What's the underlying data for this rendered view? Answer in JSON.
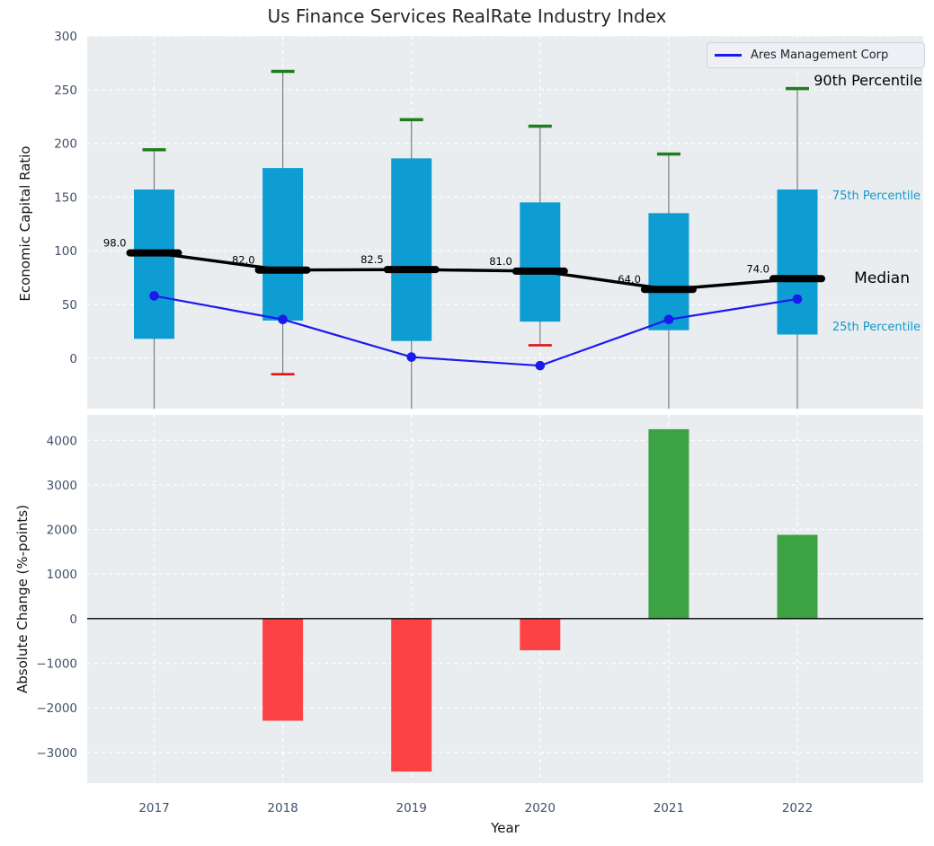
{
  "title": "Us Finance Services RealRate Industry Index",
  "legend": {
    "label": "Ares Management Corp"
  },
  "annotations": {
    "p90": "90th Percentile",
    "p75": "75th Percentile",
    "median": "Median",
    "p25": "25th Percentile"
  },
  "colors": {
    "box_fill": "#0d9dd3",
    "ares_line": "#1a1aee",
    "cap_high": "#1e7e1e",
    "cap_low": "#e01616",
    "bar_positive": "#3da244",
    "bar_negative": "#fc4245",
    "median_line": "#000000",
    "panel_bg": "#e9edf0",
    "grid": "#ffffff",
    "whisker": "#7d7d7d",
    "tick_text": "#42506a",
    "cyan_label": "#1498cc",
    "zero_line": "#000000"
  },
  "chart_data": [
    {
      "type": "box",
      "ylabel": "Economic Capital Ratio",
      "ylim": [
        -47,
        300
      ],
      "yticks": [
        0,
        50,
        100,
        150,
        200,
        250,
        300
      ],
      "grid": true,
      "legend_position": "upper right",
      "categories": [
        "2017",
        "2018",
        "2019",
        "2020",
        "2021",
        "2022"
      ],
      "series": {
        "p90": [
          194,
          267,
          222,
          216,
          190,
          251
        ],
        "p75": [
          157,
          177,
          186,
          145,
          135,
          157
        ],
        "median": [
          98.0,
          82.0,
          82.5,
          81.0,
          64.0,
          74.0
        ],
        "p25": [
          18,
          35,
          16,
          34,
          26,
          22
        ],
        "p10": [
          null,
          -15,
          null,
          12,
          null,
          null
        ],
        "ares_management_corp": [
          58,
          36,
          1,
          -7,
          36,
          55
        ]
      },
      "median_labels": [
        "98.0",
        "82.0",
        "82.5",
        "81.0",
        "64.0",
        "74.0"
      ],
      "note_p10_null_means": "10th percentile below visible axis range (whisker clipped at panel bottom, no cap drawn)"
    },
    {
      "type": "bar",
      "xlabel": "Year",
      "ylabel": "Absolute Change (%-points)",
      "ylim": [
        -3690,
        4570
      ],
      "yticks": [
        -3000,
        -2000,
        -1000,
        0,
        1000,
        2000,
        3000,
        4000
      ],
      "grid": true,
      "categories": [
        "2017",
        "2018",
        "2019",
        "2020",
        "2021",
        "2022"
      ],
      "values": [
        0,
        -2290,
        -3430,
        -710,
        4250,
        1880
      ]
    }
  ]
}
